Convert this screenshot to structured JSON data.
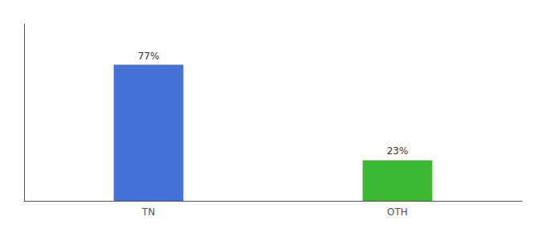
{
  "chart_data": {
    "type": "bar",
    "categories": [
      "TN",
      "OTH"
    ],
    "values": [
      77,
      23
    ],
    "colors": [
      "#4472d6",
      "#3cb832"
    ],
    "value_labels": [
      "77%",
      "23%"
    ],
    "data_labels": true,
    "ylim": [
      0,
      100
    ],
    "yticks": [],
    "grid": false,
    "tick_labels": "x"
  }
}
